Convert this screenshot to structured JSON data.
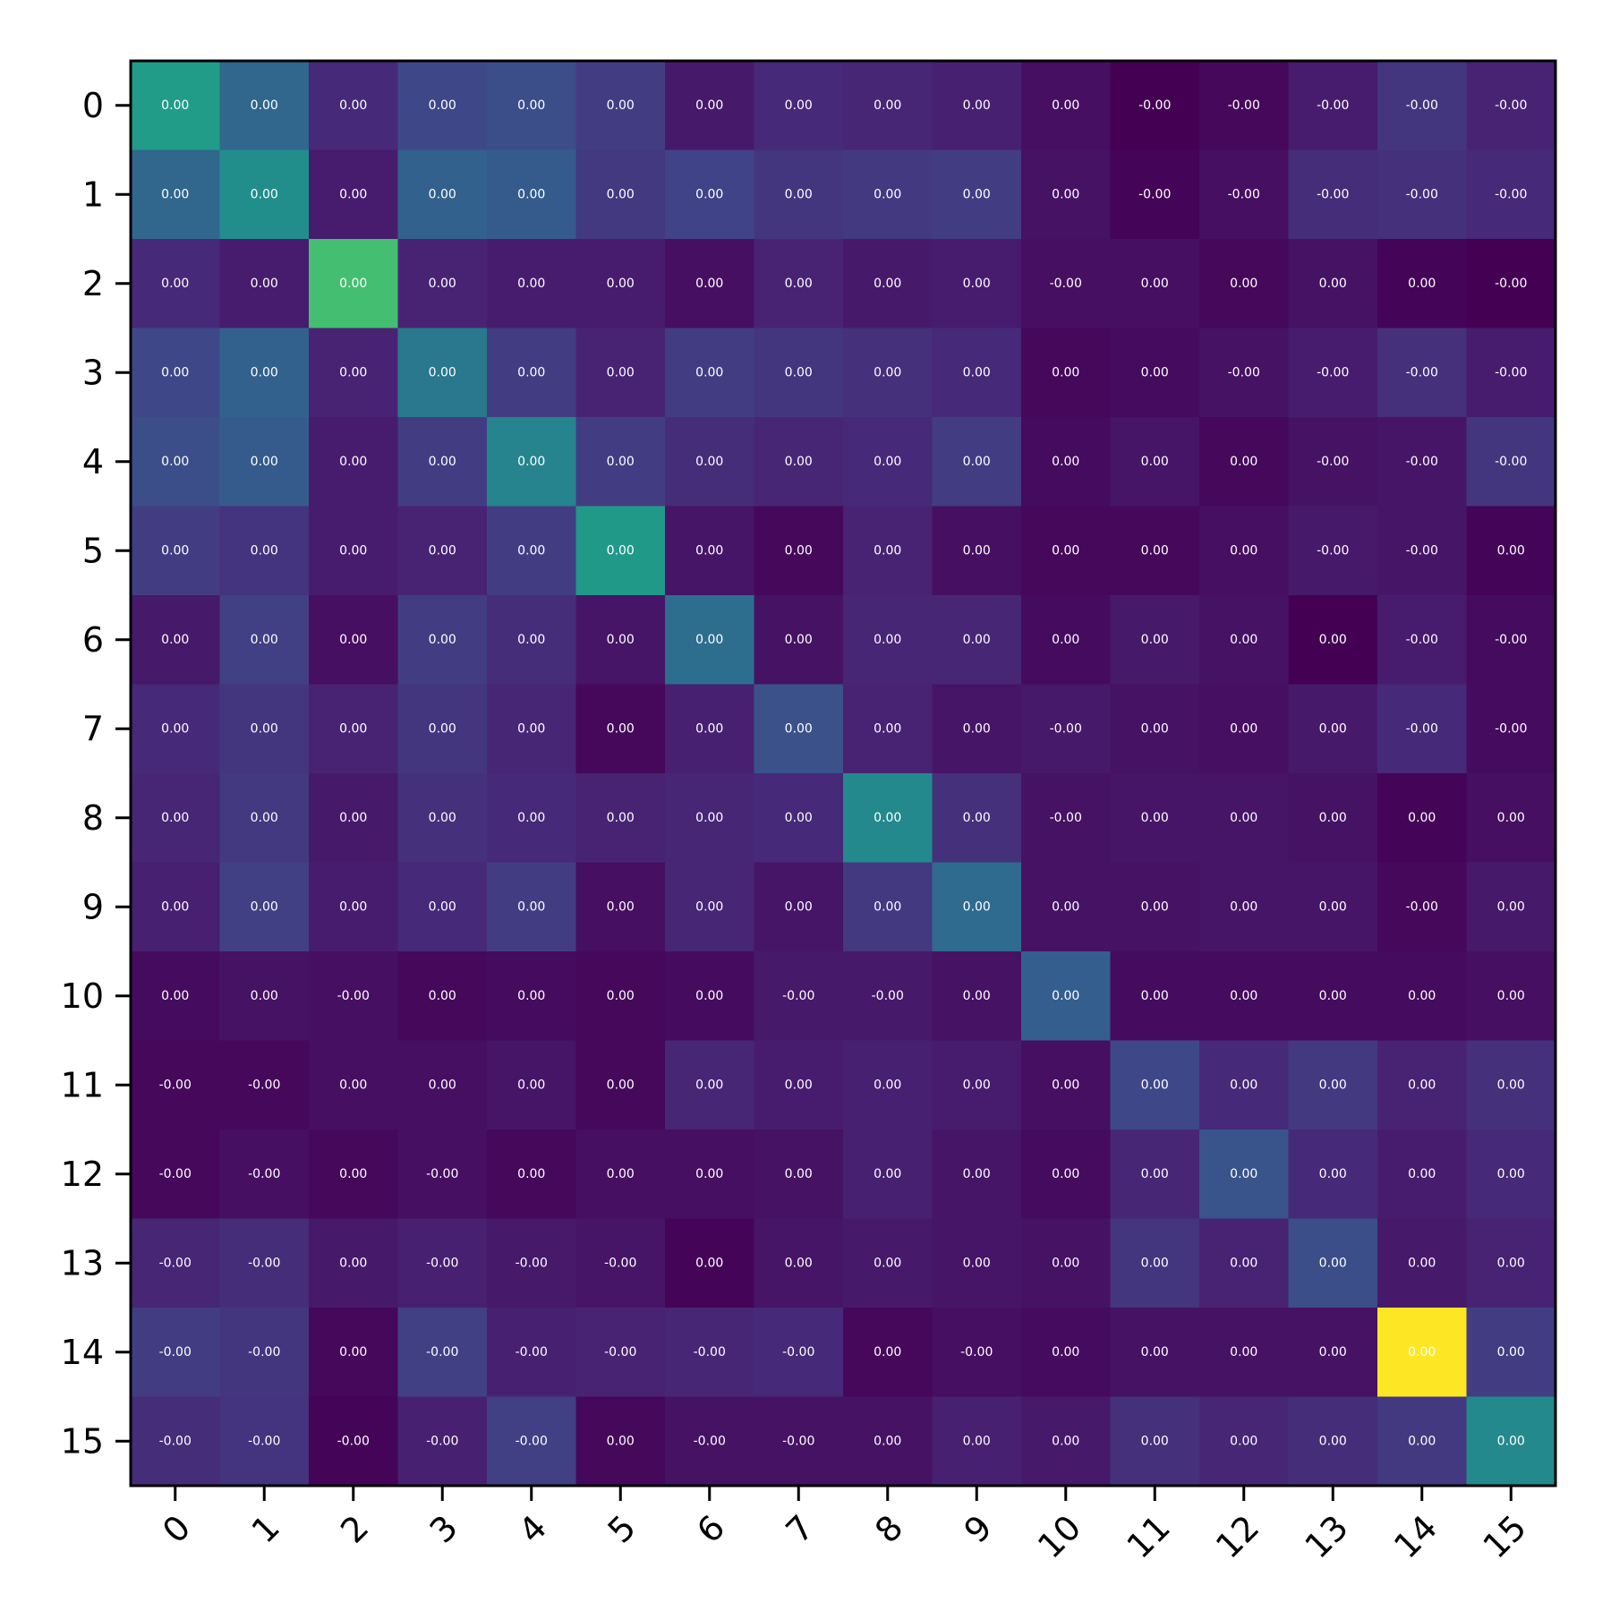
{
  "chart_data": {
    "type": "heatmap",
    "title": "",
    "xlabel": "",
    "ylabel": "",
    "x_ticks": [
      "0",
      "1",
      "2",
      "3",
      "4",
      "5",
      "6",
      "7",
      "8",
      "9",
      "10",
      "11",
      "12",
      "13",
      "14",
      "15"
    ],
    "y_ticks": [
      "0",
      "1",
      "2",
      "3",
      "4",
      "5",
      "6",
      "7",
      "8",
      "9",
      "10",
      "11",
      "12",
      "13",
      "14",
      "15"
    ],
    "colormap": "viridis",
    "x_tick_rotation": 45,
    "grid": false,
    "legend": "none",
    "labels": [
      [
        "0.00",
        "0.00",
        "0.00",
        "0.00",
        "0.00",
        "0.00",
        "0.00",
        "0.00",
        "0.00",
        "0.00",
        "0.00",
        "-0.00",
        "-0.00",
        "-0.00",
        "-0.00",
        "-0.00"
      ],
      [
        "0.00",
        "0.00",
        "0.00",
        "0.00",
        "0.00",
        "0.00",
        "0.00",
        "0.00",
        "0.00",
        "0.00",
        "0.00",
        "-0.00",
        "-0.00",
        "-0.00",
        "-0.00",
        "-0.00"
      ],
      [
        "0.00",
        "0.00",
        "0.00",
        "0.00",
        "0.00",
        "0.00",
        "0.00",
        "0.00",
        "0.00",
        "0.00",
        "-0.00",
        "0.00",
        "0.00",
        "0.00",
        "0.00",
        "-0.00"
      ],
      [
        "0.00",
        "0.00",
        "0.00",
        "0.00",
        "0.00",
        "0.00",
        "0.00",
        "0.00",
        "0.00",
        "0.00",
        "0.00",
        "0.00",
        "-0.00",
        "-0.00",
        "-0.00",
        "-0.00"
      ],
      [
        "0.00",
        "0.00",
        "0.00",
        "0.00",
        "0.00",
        "0.00",
        "0.00",
        "0.00",
        "0.00",
        "0.00",
        "0.00",
        "0.00",
        "0.00",
        "-0.00",
        "-0.00",
        "-0.00"
      ],
      [
        "0.00",
        "0.00",
        "0.00",
        "0.00",
        "0.00",
        "0.00",
        "0.00",
        "0.00",
        "0.00",
        "0.00",
        "0.00",
        "0.00",
        "0.00",
        "-0.00",
        "-0.00",
        "0.00"
      ],
      [
        "0.00",
        "0.00",
        "0.00",
        "0.00",
        "0.00",
        "0.00",
        "0.00",
        "0.00",
        "0.00",
        "0.00",
        "0.00",
        "0.00",
        "0.00",
        "0.00",
        "-0.00",
        "-0.00"
      ],
      [
        "0.00",
        "0.00",
        "0.00",
        "0.00",
        "0.00",
        "0.00",
        "0.00",
        "0.00",
        "0.00",
        "0.00",
        "-0.00",
        "0.00",
        "0.00",
        "0.00",
        "-0.00",
        "-0.00"
      ],
      [
        "0.00",
        "0.00",
        "0.00",
        "0.00",
        "0.00",
        "0.00",
        "0.00",
        "0.00",
        "0.00",
        "0.00",
        "-0.00",
        "0.00",
        "0.00",
        "0.00",
        "0.00",
        "0.00"
      ],
      [
        "0.00",
        "0.00",
        "0.00",
        "0.00",
        "0.00",
        "0.00",
        "0.00",
        "0.00",
        "0.00",
        "0.00",
        "0.00",
        "0.00",
        "0.00",
        "0.00",
        "-0.00",
        "0.00"
      ],
      [
        "0.00",
        "0.00",
        "-0.00",
        "0.00",
        "0.00",
        "0.00",
        "0.00",
        "-0.00",
        "-0.00",
        "0.00",
        "0.00",
        "0.00",
        "0.00",
        "0.00",
        "0.00",
        "0.00"
      ],
      [
        "-0.00",
        "-0.00",
        "0.00",
        "0.00",
        "0.00",
        "0.00",
        "0.00",
        "0.00",
        "0.00",
        "0.00",
        "0.00",
        "0.00",
        "0.00",
        "0.00",
        "0.00",
        "0.00"
      ],
      [
        "-0.00",
        "-0.00",
        "0.00",
        "-0.00",
        "0.00",
        "0.00",
        "0.00",
        "0.00",
        "0.00",
        "0.00",
        "0.00",
        "0.00",
        "0.00",
        "0.00",
        "0.00",
        "0.00"
      ],
      [
        "-0.00",
        "-0.00",
        "0.00",
        "-0.00",
        "-0.00",
        "-0.00",
        "0.00",
        "0.00",
        "0.00",
        "0.00",
        "0.00",
        "0.00",
        "0.00",
        "0.00",
        "0.00",
        "0.00"
      ],
      [
        "-0.00",
        "-0.00",
        "0.00",
        "-0.00",
        "-0.00",
        "-0.00",
        "-0.00",
        "-0.00",
        "0.00",
        "-0.00",
        "0.00",
        "0.00",
        "0.00",
        "0.00",
        "0.00",
        "0.00"
      ],
      [
        "-0.00",
        "-0.00",
        "-0.00",
        "-0.00",
        "-0.00",
        "0.00",
        "-0.00",
        "-0.00",
        "0.00",
        "0.00",
        "0.00",
        "0.00",
        "0.00",
        "0.00",
        "0.00",
        "0.00"
      ]
    ],
    "intensity": [
      [
        0.55,
        0.33,
        0.12,
        0.22,
        0.24,
        0.18,
        0.07,
        0.12,
        0.11,
        0.09,
        0.04,
        0.0,
        0.02,
        0.08,
        0.16,
        0.1
      ],
      [
        0.33,
        0.49,
        0.08,
        0.31,
        0.29,
        0.17,
        0.2,
        0.16,
        0.17,
        0.18,
        0.05,
        0.01,
        0.04,
        0.13,
        0.14,
        0.12
      ],
      [
        0.12,
        0.08,
        0.7,
        0.1,
        0.08,
        0.08,
        0.04,
        0.1,
        0.07,
        0.08,
        0.04,
        0.04,
        0.02,
        0.05,
        0.01,
        0.0
      ],
      [
        0.22,
        0.31,
        0.1,
        0.4,
        0.18,
        0.1,
        0.18,
        0.16,
        0.14,
        0.12,
        0.02,
        0.03,
        0.05,
        0.08,
        0.14,
        0.08
      ],
      [
        0.24,
        0.29,
        0.08,
        0.18,
        0.45,
        0.18,
        0.13,
        0.11,
        0.12,
        0.18,
        0.03,
        0.06,
        0.02,
        0.05,
        0.06,
        0.16
      ],
      [
        0.18,
        0.15,
        0.08,
        0.1,
        0.18,
        0.54,
        0.06,
        0.02,
        0.1,
        0.04,
        0.02,
        0.02,
        0.04,
        0.07,
        0.06,
        0.01
      ],
      [
        0.07,
        0.19,
        0.04,
        0.18,
        0.13,
        0.06,
        0.36,
        0.05,
        0.11,
        0.11,
        0.03,
        0.07,
        0.05,
        0.0,
        0.08,
        0.03
      ],
      [
        0.12,
        0.16,
        0.1,
        0.16,
        0.11,
        0.02,
        0.09,
        0.25,
        0.1,
        0.06,
        0.07,
        0.05,
        0.04,
        0.07,
        0.12,
        0.03
      ],
      [
        0.11,
        0.17,
        0.07,
        0.14,
        0.12,
        0.1,
        0.11,
        0.12,
        0.47,
        0.14,
        0.05,
        0.06,
        0.06,
        0.05,
        0.01,
        0.04
      ],
      [
        0.09,
        0.19,
        0.08,
        0.12,
        0.18,
        0.04,
        0.11,
        0.06,
        0.17,
        0.35,
        0.05,
        0.05,
        0.06,
        0.06,
        0.02,
        0.07
      ],
      [
        0.03,
        0.05,
        0.04,
        0.02,
        0.03,
        0.02,
        0.03,
        0.07,
        0.07,
        0.05,
        0.3,
        0.03,
        0.03,
        0.03,
        0.03,
        0.04
      ],
      [
        0.02,
        0.02,
        0.04,
        0.04,
        0.06,
        0.02,
        0.11,
        0.08,
        0.09,
        0.08,
        0.04,
        0.22,
        0.12,
        0.17,
        0.1,
        0.14
      ],
      [
        0.02,
        0.04,
        0.02,
        0.04,
        0.02,
        0.04,
        0.04,
        0.05,
        0.09,
        0.06,
        0.03,
        0.11,
        0.26,
        0.12,
        0.08,
        0.12
      ],
      [
        0.11,
        0.13,
        0.07,
        0.09,
        0.07,
        0.06,
        0.01,
        0.06,
        0.07,
        0.06,
        0.05,
        0.16,
        0.1,
        0.24,
        0.07,
        0.1
      ],
      [
        0.18,
        0.16,
        0.02,
        0.19,
        0.09,
        0.1,
        0.11,
        0.12,
        0.02,
        0.04,
        0.03,
        0.05,
        0.05,
        0.05,
        1.0,
        0.18
      ],
      [
        0.13,
        0.15,
        0.01,
        0.09,
        0.19,
        0.02,
        0.05,
        0.05,
        0.05,
        0.09,
        0.07,
        0.14,
        0.11,
        0.13,
        0.17,
        0.47
      ]
    ]
  }
}
